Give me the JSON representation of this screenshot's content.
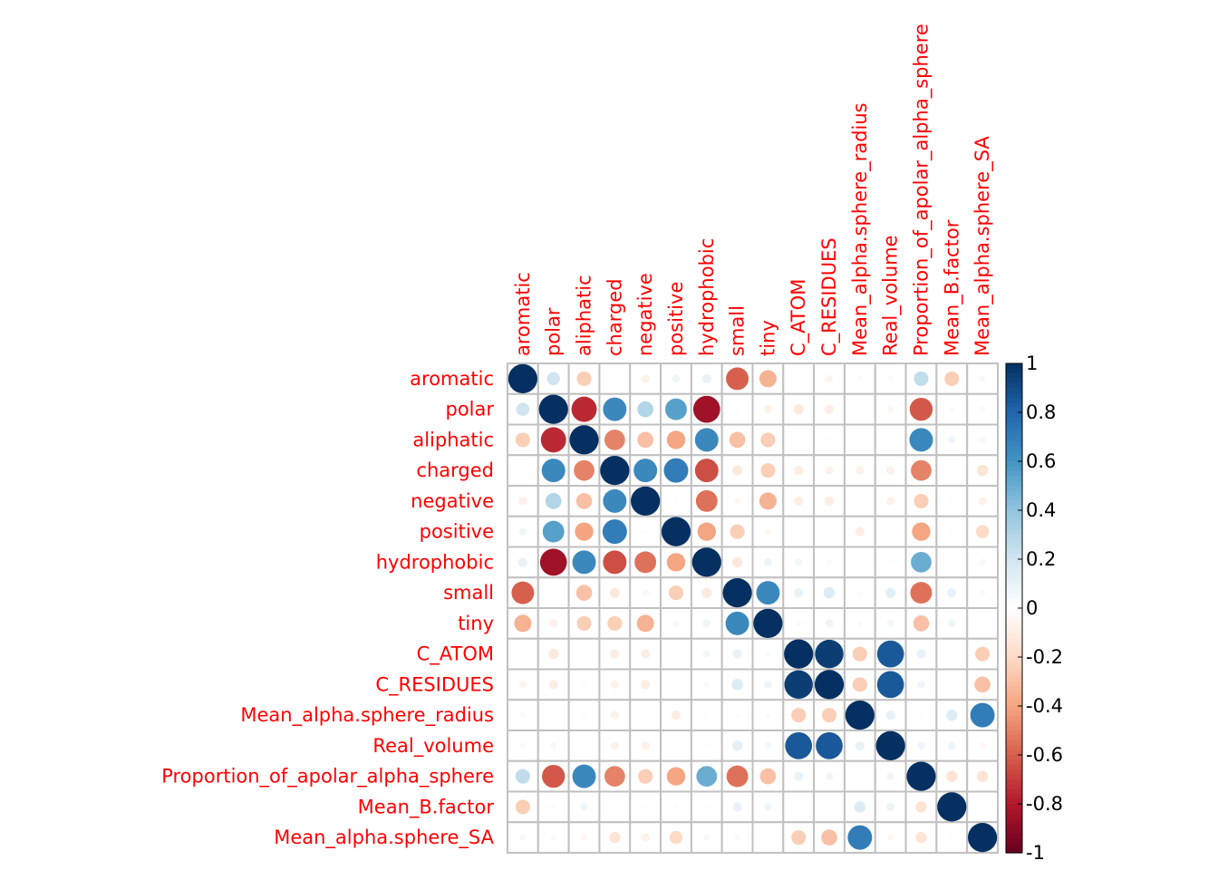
{
  "chart_data": {
    "type": "heatmap",
    "subtype": "corrplot-circle",
    "variables": [
      "aromatic",
      "polar",
      "aliphatic",
      "charged",
      "negative",
      "positive",
      "hydrophobic",
      "small",
      "tiny",
      "C_ATOM",
      "C_RESIDUES",
      "Mean_alpha.sphere_radius",
      "Real_volume",
      "Proportion_of_apolar_alpha_sphere",
      "Mean_B.factor",
      "Mean_alpha.sphere_SA"
    ],
    "matrix": [
      [
        1,
        0.2,
        -0.25,
        0,
        -0.08,
        0.07,
        0.1,
        -0.6,
        -0.35,
        0,
        -0.06,
        -0.03,
        -0.04,
        0.25,
        -0.25,
        0.05
      ],
      [
        0.2,
        1,
        -0.75,
        0.65,
        0.3,
        0.55,
        -0.85,
        -0.02,
        -0.08,
        -0.12,
        -0.1,
        0,
        -0.05,
        -0.62,
        -0.03,
        0.04
      ],
      [
        -0.25,
        -0.75,
        1,
        -0.5,
        -0.3,
        -0.4,
        0.65,
        -0.3,
        -0.25,
        -0.02,
        -0.02,
        -0.02,
        0,
        0.65,
        0.07,
        -0.05
      ],
      [
        0,
        0.65,
        -0.5,
        1,
        0.65,
        0.7,
        -0.65,
        -0.12,
        -0.25,
        -0.1,
        -0.08,
        -0.08,
        -0.08,
        -0.5,
        0,
        -0.15
      ],
      [
        -0.08,
        0.3,
        -0.3,
        0.65,
        1,
        -0.02,
        -0.55,
        -0.05,
        -0.35,
        -0.1,
        -0.1,
        0,
        -0.08,
        -0.25,
        -0.02,
        -0.08
      ],
      [
        0.07,
        0.55,
        -0.4,
        0.7,
        -0.02,
        1,
        -0.4,
        -0.25,
        -0.05,
        0,
        0,
        -0.1,
        0,
        -0.4,
        -0.02,
        -0.2
      ],
      [
        0.1,
        -0.85,
        0.65,
        -0.65,
        -0.55,
        -0.4,
        1,
        -0.12,
        0.08,
        0.06,
        0.04,
        -0.02,
        -0.02,
        0.5,
        -0.02,
        0.05
      ],
      [
        -0.6,
        -0.02,
        -0.3,
        -0.12,
        -0.05,
        -0.25,
        -0.12,
        1,
        0.65,
        0.1,
        0.15,
        -0.03,
        0.12,
        -0.55,
        0.1,
        0.04
      ],
      [
        -0.35,
        -0.08,
        -0.25,
        -0.25,
        -0.35,
        -0.05,
        0.08,
        0.65,
        1,
        0.04,
        0.08,
        0.03,
        0.06,
        -0.3,
        0.07,
        0
      ],
      [
        0,
        -0.12,
        -0.02,
        -0.1,
        -0.1,
        0,
        0.06,
        0.1,
        0.04,
        1,
        0.95,
        -0.25,
        0.85,
        0.1,
        -0.02,
        -0.25
      ],
      [
        -0.06,
        -0.1,
        -0.02,
        -0.08,
        -0.1,
        0,
        0.04,
        0.15,
        0.08,
        0.95,
        1,
        -0.25,
        0.85,
        0.07,
        0,
        -0.3
      ],
      [
        -0.03,
        0,
        -0.02,
        -0.08,
        0,
        -0.1,
        -0.02,
        -0.03,
        0.03,
        -0.25,
        -0.25,
        1,
        0.1,
        -0.02,
        0.15,
        0.7
      ],
      [
        -0.04,
        -0.05,
        0,
        -0.08,
        -0.08,
        0,
        -0.02,
        0.12,
        0.06,
        0.85,
        0.85,
        0.1,
        1,
        0.07,
        0.08,
        -0.05
      ],
      [
        0.25,
        -0.62,
        0.65,
        -0.5,
        -0.25,
        -0.4,
        0.5,
        -0.55,
        -0.3,
        0.1,
        0.07,
        -0.02,
        0.07,
        1,
        -0.15,
        -0.15
      ],
      [
        -0.25,
        -0.03,
        0.07,
        0,
        -0.02,
        -0.02,
        -0.02,
        0.1,
        0.07,
        -0.02,
        0,
        0.15,
        0.08,
        -0.15,
        1,
        0.02
      ],
      [
        0.05,
        0.04,
        -0.05,
        -0.15,
        -0.08,
        -0.2,
        0.05,
        0.04,
        0,
        -0.25,
        -0.3,
        0.7,
        -0.05,
        -0.15,
        0.02,
        1
      ]
    ],
    "colorbar": {
      "range": [
        -1,
        1
      ],
      "ticks": [
        "-1",
        "-0.8",
        "-0.6",
        "-0.4",
        "-0.2",
        "0",
        "0.2",
        "0.4",
        "0.6",
        "0.8",
        "1"
      ]
    },
    "palette": [
      "#67001F",
      "#B2182B",
      "#D6604D",
      "#F4A582",
      "#FDDBC7",
      "#FFFFFF",
      "#D1E5F0",
      "#92C5DE",
      "#4393C3",
      "#2166AC",
      "#053061"
    ],
    "label_color": "#FF0000",
    "grid_color": "#C0C0C0"
  }
}
